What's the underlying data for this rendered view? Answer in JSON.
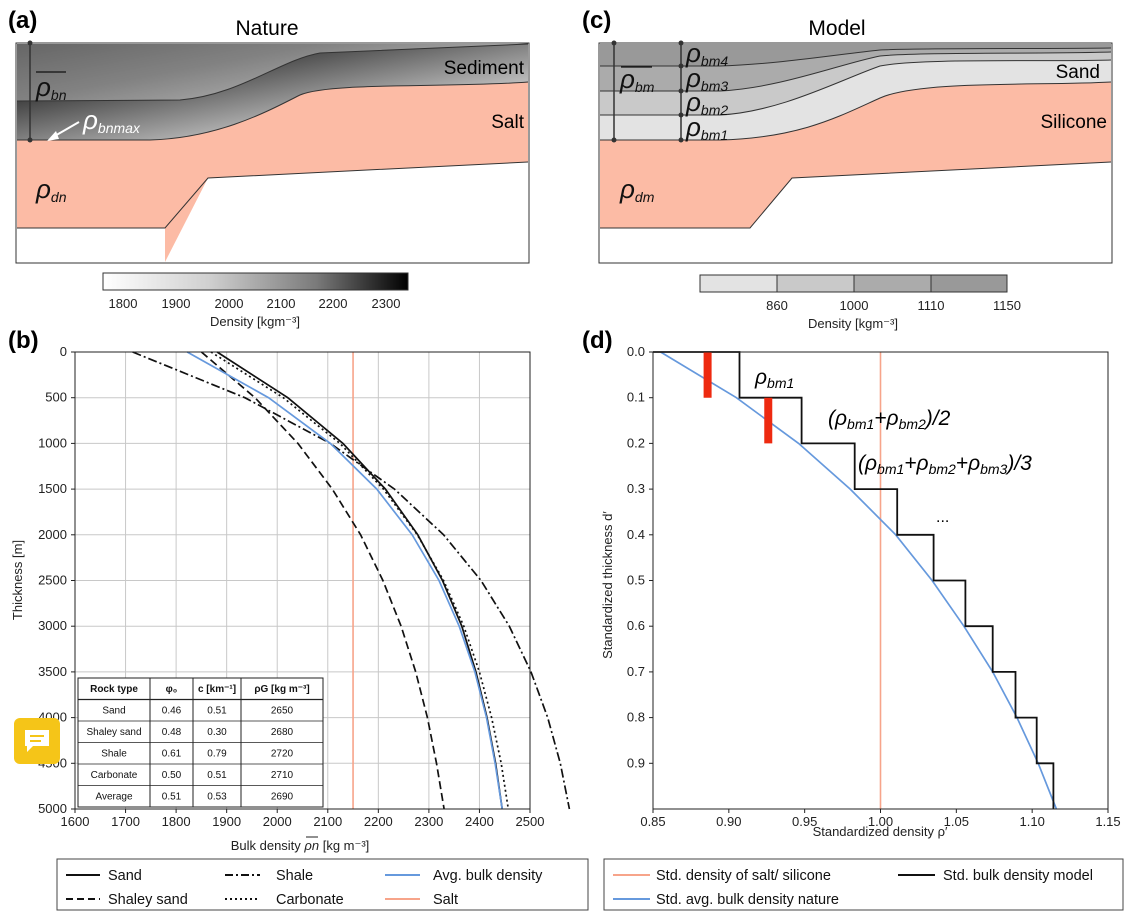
{
  "colors": {
    "salt": "#fcbba5",
    "salt_line": "#f7a48a",
    "avg": "#6699dd",
    "sand_model": "#e3e3e3",
    "feedback_button": "#f5c518"
  },
  "panel_a": {
    "letter": "(a)",
    "title": "Nature",
    "labels": {
      "sediment": "Sediment",
      "salt": "Salt"
    },
    "symbols": {
      "rho_bn_base": "ρ",
      "rho_bn_sub": "bn",
      "rho_bnmax_base": "ρ",
      "rho_bnmax_sub": "bnmax",
      "rho_dn_base": "ρ",
      "rho_dn_sub": "dn"
    },
    "colorbar": {
      "ticks": [
        "1800",
        "1900",
        "2000",
        "2100",
        "2200",
        "2300"
      ],
      "label": "Density [kgm⁻³]"
    }
  },
  "panel_c": {
    "letter": "(c)",
    "title": "Model",
    "labels": {
      "sand": "Sand",
      "silicone": "Silicone"
    },
    "symbols": {
      "base": "ρ",
      "subs": {
        "bm4": "bm4",
        "bm3": "bm3",
        "bm2": "bm2",
        "bm1": "bm1",
        "bm": "bm",
        "dm": "dm"
      }
    },
    "colorbar": {
      "ticks": [
        "860",
        "1000",
        "1110",
        "1150"
      ],
      "label": "Density [kgm⁻³]"
    }
  },
  "feedback_icon": "message-icon",
  "chart_data": [
    {
      "type": "line",
      "panel": "(b)",
      "xlabel_main": "Bulk density ",
      "xlabel_symbol": "ρn",
      "xlabel_unit": " [kg m⁻³]",
      "ylabel": "Thickness [m]",
      "xlim": [
        1600,
        2500
      ],
      "ylim": [
        5000,
        0
      ],
      "y_inverted": true,
      "grid": true,
      "xticks": [
        "1600",
        "1700",
        "1800",
        "1900",
        "2000",
        "2100",
        "2200",
        "2300",
        "2400",
        "2500"
      ],
      "yticks": [
        "0",
        "500",
        "1000",
        "1500",
        "2000",
        "2500",
        "3000",
        "3500",
        "4000",
        "4500",
        "5000"
      ],
      "salt_density": 2150,
      "series": [
        {
          "name": "Sand",
          "style": "solid",
          "color": "#111111",
          "depth": [
            0,
            500,
            1000,
            1500,
            2000,
            2500,
            3000,
            3500,
            4000,
            4500,
            5000
          ],
          "density": [
            1881,
            2021,
            2130,
            2214,
            2278,
            2327,
            2365,
            2393,
            2415,
            2432,
            2445
          ]
        },
        {
          "name": "Shaley sand",
          "style": "dashed",
          "color": "#111111",
          "depth": [
            0,
            500,
            1000,
            1500,
            2000,
            2500,
            3000,
            3500,
            4000,
            4500,
            5000
          ],
          "density": [
            1850,
            1956,
            2041,
            2109,
            2165,
            2209,
            2245,
            2274,
            2297,
            2315,
            2330
          ]
        },
        {
          "name": "Shale",
          "style": "dashdot",
          "color": "#111111",
          "depth": [
            0,
            500,
            1000,
            1500,
            2000,
            2500,
            3000,
            3500,
            4000,
            4500,
            5000
          ],
          "density": [
            1714,
            1936,
            2105,
            2232,
            2329,
            2403,
            2459,
            2502,
            2535,
            2560,
            2578
          ]
        },
        {
          "name": "Carbonate",
          "style": "dotted",
          "color": "#111111",
          "depth": [
            0,
            500,
            1000,
            1500,
            2000,
            2500,
            3000,
            3500,
            4000,
            4500,
            5000
          ],
          "density": [
            1869,
            2012,
            2124,
            2210,
            2277,
            2329,
            2369,
            2400,
            2424,
            2443,
            2457
          ]
        },
        {
          "name": "Avg. bulk density",
          "style": "solid",
          "color": "#6699dd",
          "depth": [
            0,
            500,
            1000,
            1500,
            2000,
            2500,
            3000,
            3500,
            4000,
            4500,
            5000
          ],
          "density": [
            1822,
            1983,
            2105,
            2197,
            2267,
            2320,
            2360,
            2391,
            2414,
            2431,
            2445
          ]
        },
        {
          "name": "Salt",
          "style": "solid",
          "color": "#f7a48a"
        }
      ],
      "table": {
        "headers": [
          "Rock type",
          "φ₀",
          "c [km⁻¹]",
          "ρG [kg m⁻³]"
        ],
        "rows": [
          [
            "Sand",
            "0.46",
            "0.51",
            "2650"
          ],
          [
            "Shaley sand",
            "0.48",
            "0.30",
            "2680"
          ],
          [
            "Shale",
            "0.61",
            "0.79",
            "2720"
          ],
          [
            "Carbonate",
            "0.50",
            "0.51",
            "2710"
          ],
          [
            "Average",
            "0.51",
            "0.53",
            "2690"
          ]
        ]
      },
      "legend": {
        "placement": "bottom",
        "entries": [
          "Sand",
          "Shaley sand",
          "Shale",
          "Carbonate",
          "Avg. bulk density",
          "Salt"
        ]
      }
    },
    {
      "type": "line",
      "panel": "(d)",
      "xlabel": "Standardized density ρ′",
      "ylabel": "Standardized thickness d′",
      "xlim": [
        0.85,
        1.15
      ],
      "ylim": [
        1.0,
        0.0
      ],
      "y_inverted": true,
      "grid": false,
      "xticks": [
        "0.85",
        "0.90",
        "0.95",
        "1.00",
        "1.05",
        "1.10",
        "1.15"
      ],
      "yticks": [
        "0.0",
        "0.1",
        "0.2",
        "0.3",
        "0.4",
        "0.5",
        "0.6",
        "0.7",
        "0.8",
        "0.9"
      ],
      "salt_density": 1.0,
      "avg_curve": {
        "depth": [
          0,
          0.1,
          0.2,
          0.3,
          0.4,
          0.5,
          0.6,
          0.7,
          0.8,
          0.9,
          1.0
        ],
        "density": [
          0.855,
          0.905,
          0.946,
          0.98,
          1.01,
          1.034,
          1.055,
          1.074,
          1.09,
          1.104,
          1.116
        ]
      },
      "step_model": {
        "depth_edges": [
          0,
          0.1,
          0.2,
          0.3,
          0.4,
          0.5,
          0.6,
          0.7,
          0.8,
          0.9,
          1.0
        ],
        "density": [
          0.907,
          0.948,
          0.983,
          1.011,
          1.035,
          1.056,
          1.074,
          1.089,
          1.103,
          1.114
        ]
      },
      "red_marks": [
        {
          "density": 0.886,
          "depth": [
            0.0,
            0.1
          ]
        },
        {
          "density": 0.926,
          "depth": [
            0.1,
            0.2
          ]
        }
      ],
      "annotations": {
        "a1_base": "ρ",
        "a1_sub": "bm1",
        "a2_open": "(",
        "a2_close": ")/2",
        "a3_open": "(",
        "a3_close": ")/3",
        "plus": "+",
        "ellipsis": "..."
      },
      "legend": {
        "placement": "bottom",
        "entries": [
          "Std. density of salt/ silicone",
          "Std. avg. bulk density nature",
          "Std. bulk density model"
        ]
      }
    }
  ]
}
